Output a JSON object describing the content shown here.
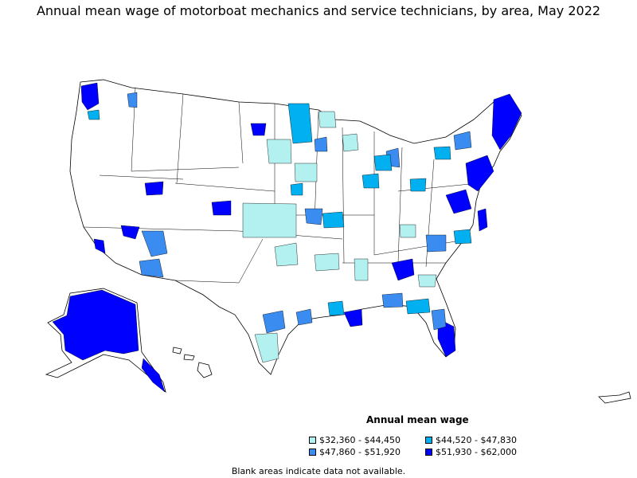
{
  "title": "Annual mean wage of motorboat mechanics and service technicians, by area, May 2022",
  "legend": {
    "title": "Annual mean wage",
    "items": [
      {
        "label": "$32,360 - $44,450",
        "color": "#b3f0f0"
      },
      {
        "label": "$44,520 - $47,830",
        "color": "#00b0f0"
      },
      {
        "label": "$47,860 - $51,920",
        "color": "#3a8cf0"
      },
      {
        "label": "$51,930 - $62,000",
        "color": "#0000ff"
      }
    ]
  },
  "note": "Blank areas indicate data not available.",
  "colors": {
    "background": "#ffffff",
    "border": "#000000",
    "no_data": "#ffffff"
  }
}
